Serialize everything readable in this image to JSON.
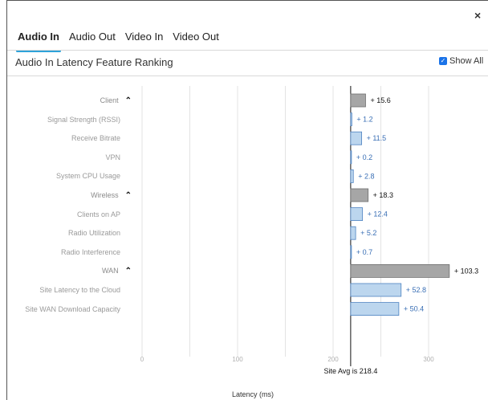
{
  "window": {
    "close_glyph": "×"
  },
  "tabs": [
    {
      "label": "Audio In",
      "active": true
    },
    {
      "label": "Audio Out",
      "active": false
    },
    {
      "label": "Video In",
      "active": false
    },
    {
      "label": "Video Out",
      "active": false
    }
  ],
  "panel": {
    "title": "Audio In Latency Feature Ranking",
    "show_all_label": "Show All",
    "show_all_checked": true
  },
  "colors": {
    "group_bar": "#a6a6a6",
    "item_bar": "#bcd6ee",
    "item_border": "#4d82c1",
    "item_value_text": "#3a6fb5",
    "tab_underline": "#2ea3d9",
    "grid": "#e3e3e3"
  },
  "chart_data": {
    "type": "bar",
    "orientation": "horizontal",
    "xlabel": "Latency (ms)",
    "xlim": [
      0,
      350
    ],
    "x_ticks": [
      0,
      100,
      200,
      300
    ],
    "baseline": 218.4,
    "baseline_label": "Site Avg is 218.4",
    "rows": [
      {
        "label": "Client",
        "value": 15.6,
        "value_label": "+ 15.6",
        "group": true
      },
      {
        "label": "Signal Strength (RSSI)",
        "value": 1.2,
        "value_label": "+ 1.2",
        "group": false
      },
      {
        "label": "Receive Bitrate",
        "value": 11.5,
        "value_label": "+ 11.5",
        "group": false
      },
      {
        "label": "VPN",
        "value": 0.2,
        "value_label": "+ 0.2",
        "group": false
      },
      {
        "label": "System CPU Usage",
        "value": 2.8,
        "value_label": "+ 2.8",
        "group": false
      },
      {
        "label": "Wireless",
        "value": 18.3,
        "value_label": "+ 18.3",
        "group": true
      },
      {
        "label": "Clients on AP",
        "value": 12.4,
        "value_label": "+ 12.4",
        "group": false
      },
      {
        "label": "Radio Utilization",
        "value": 5.2,
        "value_label": "+ 5.2",
        "group": false
      },
      {
        "label": "Radio Interference",
        "value": 0.7,
        "value_label": "+ 0.7",
        "group": false
      },
      {
        "label": "WAN",
        "value": 103.3,
        "value_label": "+ 103.3",
        "group": true
      },
      {
        "label": "Site Latency to the Cloud",
        "value": 52.8,
        "value_label": "+ 52.8",
        "group": false
      },
      {
        "label": "Site WAN Download Capacity",
        "value": 50.4,
        "value_label": "+ 50.4",
        "group": false
      }
    ]
  }
}
